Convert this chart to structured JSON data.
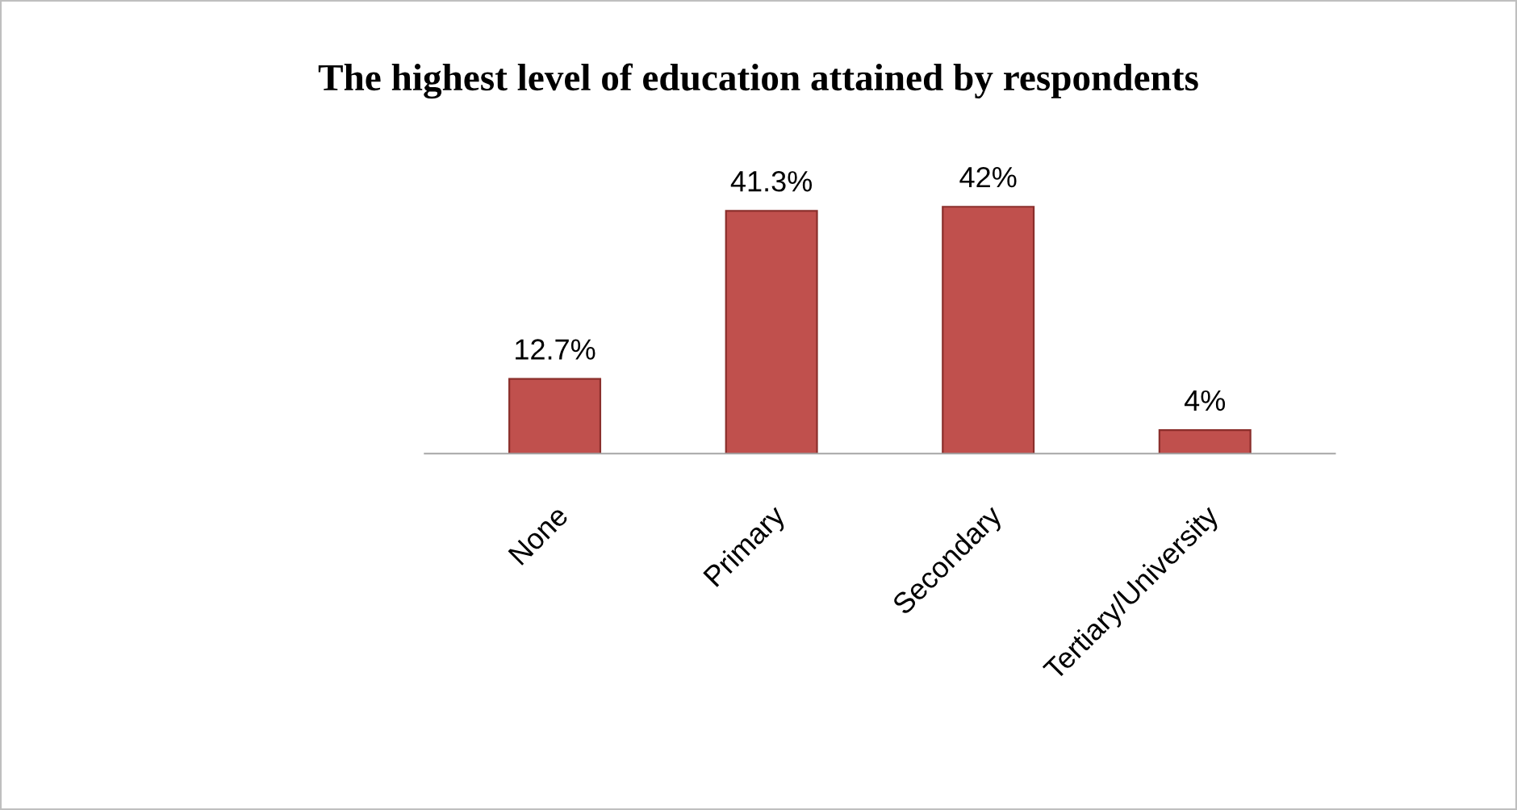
{
  "chart_data": {
    "type": "bar",
    "title": "The highest level of education attained by respondents",
    "categories": [
      "None",
      "Primary",
      "Secondary",
      "Tertiary/University"
    ],
    "values": [
      12.7,
      41.3,
      42,
      4
    ],
    "value_labels": [
      "12.7%",
      "41.3%",
      "42%",
      "4%"
    ],
    "color": "#c0504d",
    "grid": false,
    "legend": false
  }
}
